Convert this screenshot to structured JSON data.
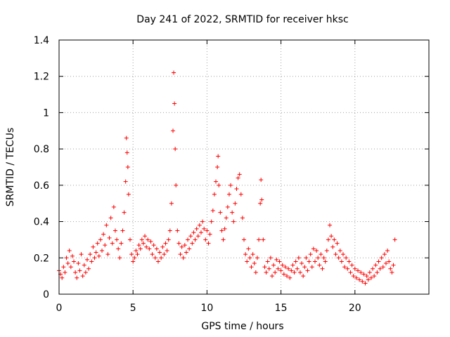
{
  "chart_data": {
    "type": "scatter",
    "title": "Day 241 of 2022, SRMTID for receiver hksc",
    "xlabel": "GPS time / hours",
    "ylabel": "SRMTID / TECUs",
    "xlim": [
      0,
      25
    ],
    "ylim": [
      0,
      1.4
    ],
    "x_ticks": [
      0,
      5,
      10,
      15,
      20
    ],
    "x_tick_labels": [
      "0",
      "5",
      "10",
      "15",
      "20"
    ],
    "y_ticks": [
      0,
      0.2,
      0.4,
      0.6,
      0.8,
      1.0,
      1.2,
      1.4
    ],
    "y_tick_labels": [
      "0",
      "0.2",
      "0.4",
      "0.6",
      "0.8",
      "1",
      "1.2",
      "1.4"
    ],
    "grid": true,
    "marker": "+",
    "marker_color": "#ff0000",
    "series": [
      {
        "name": "SRMTID",
        "points": [
          [
            0.0,
            0.13
          ],
          [
            0.1,
            0.11
          ],
          [
            0.2,
            0.09
          ],
          [
            0.3,
            0.15
          ],
          [
            0.4,
            0.12
          ],
          [
            0.5,
            0.2
          ],
          [
            0.6,
            0.17
          ],
          [
            0.7,
            0.24
          ],
          [
            0.8,
            0.15
          ],
          [
            0.9,
            0.21
          ],
          [
            1.0,
            0.18
          ],
          [
            1.1,
            0.12
          ],
          [
            1.2,
            0.09
          ],
          [
            1.3,
            0.17
          ],
          [
            1.4,
            0.13
          ],
          [
            1.5,
            0.22
          ],
          [
            1.6,
            0.1
          ],
          [
            1.7,
            0.16
          ],
          [
            1.8,
            0.12
          ],
          [
            1.9,
            0.19
          ],
          [
            2.0,
            0.14
          ],
          [
            2.1,
            0.22
          ],
          [
            2.2,
            0.18
          ],
          [
            2.3,
            0.26
          ],
          [
            2.4,
            0.2
          ],
          [
            2.5,
            0.23
          ],
          [
            2.6,
            0.28
          ],
          [
            2.7,
            0.21
          ],
          [
            2.8,
            0.3
          ],
          [
            2.9,
            0.24
          ],
          [
            3.0,
            0.33
          ],
          [
            3.1,
            0.27
          ],
          [
            3.2,
            0.38
          ],
          [
            3.3,
            0.22
          ],
          [
            3.4,
            0.31
          ],
          [
            3.5,
            0.42
          ],
          [
            3.6,
            0.28
          ],
          [
            3.7,
            0.48
          ],
          [
            3.8,
            0.35
          ],
          [
            3.9,
            0.3
          ],
          [
            4.0,
            0.25
          ],
          [
            4.1,
            0.2
          ],
          [
            4.2,
            0.28
          ],
          [
            4.3,
            0.35
          ],
          [
            4.4,
            0.45
          ],
          [
            4.5,
            0.62
          ],
          [
            4.55,
            0.86
          ],
          [
            4.6,
            0.78
          ],
          [
            4.65,
            0.7
          ],
          [
            4.7,
            0.55
          ],
          [
            4.8,
            0.3
          ],
          [
            4.9,
            0.22
          ],
          [
            5.0,
            0.18
          ],
          [
            5.1,
            0.2
          ],
          [
            5.2,
            0.24
          ],
          [
            5.3,
            0.22
          ],
          [
            5.4,
            0.27
          ],
          [
            5.5,
            0.25
          ],
          [
            5.6,
            0.3
          ],
          [
            5.7,
            0.28
          ],
          [
            5.8,
            0.32
          ],
          [
            5.9,
            0.26
          ],
          [
            6.0,
            0.3
          ],
          [
            6.1,
            0.25
          ],
          [
            6.2,
            0.29
          ],
          [
            6.3,
            0.22
          ],
          [
            6.4,
            0.27
          ],
          [
            6.5,
            0.2
          ],
          [
            6.6,
            0.25
          ],
          [
            6.7,
            0.18
          ],
          [
            6.8,
            0.23
          ],
          [
            6.9,
            0.2
          ],
          [
            7.0,
            0.26
          ],
          [
            7.1,
            0.22
          ],
          [
            7.2,
            0.28
          ],
          [
            7.3,
            0.24
          ],
          [
            7.4,
            0.3
          ],
          [
            7.5,
            0.35
          ],
          [
            7.6,
            0.5
          ],
          [
            7.7,
            0.9
          ],
          [
            7.75,
            1.22
          ],
          [
            7.8,
            1.05
          ],
          [
            7.85,
            0.8
          ],
          [
            7.9,
            0.6
          ],
          [
            8.0,
            0.35
          ],
          [
            8.1,
            0.28
          ],
          [
            8.2,
            0.22
          ],
          [
            8.3,
            0.26
          ],
          [
            8.4,
            0.2
          ],
          [
            8.5,
            0.27
          ],
          [
            8.6,
            0.23
          ],
          [
            8.7,
            0.3
          ],
          [
            8.8,
            0.25
          ],
          [
            8.9,
            0.32
          ],
          [
            9.0,
            0.28
          ],
          [
            9.1,
            0.34
          ],
          [
            9.2,
            0.3
          ],
          [
            9.3,
            0.36
          ],
          [
            9.4,
            0.32
          ],
          [
            9.5,
            0.38
          ],
          [
            9.6,
            0.34
          ],
          [
            9.7,
            0.4
          ],
          [
            9.8,
            0.36
          ],
          [
            9.9,
            0.3
          ],
          [
            10.0,
            0.35
          ],
          [
            10.1,
            0.28
          ],
          [
            10.2,
            0.33
          ],
          [
            10.3,
            0.4
          ],
          [
            10.4,
            0.46
          ],
          [
            10.5,
            0.55
          ],
          [
            10.6,
            0.62
          ],
          [
            10.7,
            0.7
          ],
          [
            10.75,
            0.76
          ],
          [
            10.8,
            0.6
          ],
          [
            10.9,
            0.45
          ],
          [
            11.0,
            0.35
          ],
          [
            11.1,
            0.3
          ],
          [
            11.2,
            0.36
          ],
          [
            11.3,
            0.42
          ],
          [
            11.4,
            0.48
          ],
          [
            11.5,
            0.55
          ],
          [
            11.6,
            0.6
          ],
          [
            11.7,
            0.45
          ],
          [
            11.8,
            0.4
          ],
          [
            11.9,
            0.5
          ],
          [
            12.0,
            0.58
          ],
          [
            12.1,
            0.64
          ],
          [
            12.2,
            0.66
          ],
          [
            12.3,
            0.55
          ],
          [
            12.4,
            0.42
          ],
          [
            12.5,
            0.3
          ],
          [
            12.6,
            0.22
          ],
          [
            12.7,
            0.18
          ],
          [
            12.8,
            0.25
          ],
          [
            12.9,
            0.2
          ],
          [
            13.0,
            0.15
          ],
          [
            13.1,
            0.22
          ],
          [
            13.2,
            0.17
          ],
          [
            13.3,
            0.12
          ],
          [
            13.4,
            0.2
          ],
          [
            13.5,
            0.3
          ],
          [
            13.6,
            0.5
          ],
          [
            13.65,
            0.63
          ],
          [
            13.7,
            0.52
          ],
          [
            13.8,
            0.3
          ],
          [
            13.9,
            0.15
          ],
          [
            14.0,
            0.12
          ],
          [
            14.1,
            0.18
          ],
          [
            14.2,
            0.14
          ],
          [
            14.3,
            0.2
          ],
          [
            14.4,
            0.1
          ],
          [
            14.5,
            0.16
          ],
          [
            14.6,
            0.12
          ],
          [
            14.7,
            0.19
          ],
          [
            14.8,
            0.14
          ],
          [
            14.9,
            0.18
          ],
          [
            15.0,
            0.13
          ],
          [
            15.1,
            0.16
          ],
          [
            15.2,
            0.11
          ],
          [
            15.3,
            0.15
          ],
          [
            15.4,
            0.1
          ],
          [
            15.5,
            0.14
          ],
          [
            15.6,
            0.09
          ],
          [
            15.7,
            0.13
          ],
          [
            15.8,
            0.16
          ],
          [
            15.9,
            0.12
          ],
          [
            16.0,
            0.18
          ],
          [
            16.1,
            0.14
          ],
          [
            16.2,
            0.2
          ],
          [
            16.3,
            0.12
          ],
          [
            16.4,
            0.17
          ],
          [
            16.5,
            0.1
          ],
          [
            16.6,
            0.15
          ],
          [
            16.7,
            0.2
          ],
          [
            16.8,
            0.13
          ],
          [
            16.9,
            0.18
          ],
          [
            17.0,
            0.22
          ],
          [
            17.1,
            0.15
          ],
          [
            17.2,
            0.25
          ],
          [
            17.3,
            0.18
          ],
          [
            17.4,
            0.24
          ],
          [
            17.5,
            0.2
          ],
          [
            17.6,
            0.16
          ],
          [
            17.7,
            0.22
          ],
          [
            17.8,
            0.14
          ],
          [
            17.9,
            0.2
          ],
          [
            18.0,
            0.18
          ],
          [
            18.1,
            0.24
          ],
          [
            18.2,
            0.3
          ],
          [
            18.3,
            0.38
          ],
          [
            18.4,
            0.32
          ],
          [
            18.5,
            0.26
          ],
          [
            18.6,
            0.3
          ],
          [
            18.7,
            0.22
          ],
          [
            18.8,
            0.28
          ],
          [
            18.9,
            0.2
          ],
          [
            19.0,
            0.24
          ],
          [
            19.1,
            0.18
          ],
          [
            19.2,
            0.22
          ],
          [
            19.3,
            0.15
          ],
          [
            19.4,
            0.2
          ],
          [
            19.5,
            0.14
          ],
          [
            19.6,
            0.18
          ],
          [
            19.7,
            0.12
          ],
          [
            19.8,
            0.16
          ],
          [
            19.9,
            0.1
          ],
          [
            20.0,
            0.14
          ],
          [
            20.1,
            0.09
          ],
          [
            20.2,
            0.13
          ],
          [
            20.3,
            0.08
          ],
          [
            20.4,
            0.12
          ],
          [
            20.5,
            0.07
          ],
          [
            20.6,
            0.11
          ],
          [
            20.7,
            0.06
          ],
          [
            20.8,
            0.1
          ],
          [
            20.9,
            0.08
          ],
          [
            21.0,
            0.12
          ],
          [
            21.1,
            0.09
          ],
          [
            21.2,
            0.14
          ],
          [
            21.3,
            0.1
          ],
          [
            21.4,
            0.16
          ],
          [
            21.5,
            0.12
          ],
          [
            21.6,
            0.18
          ],
          [
            21.7,
            0.14
          ],
          [
            21.8,
            0.2
          ],
          [
            21.9,
            0.15
          ],
          [
            22.0,
            0.22
          ],
          [
            22.1,
            0.17
          ],
          [
            22.2,
            0.24
          ],
          [
            22.3,
            0.18
          ],
          [
            22.4,
            0.14
          ],
          [
            22.5,
            0.12
          ],
          [
            22.6,
            0.16
          ],
          [
            22.7,
            0.3
          ]
        ]
      }
    ]
  }
}
